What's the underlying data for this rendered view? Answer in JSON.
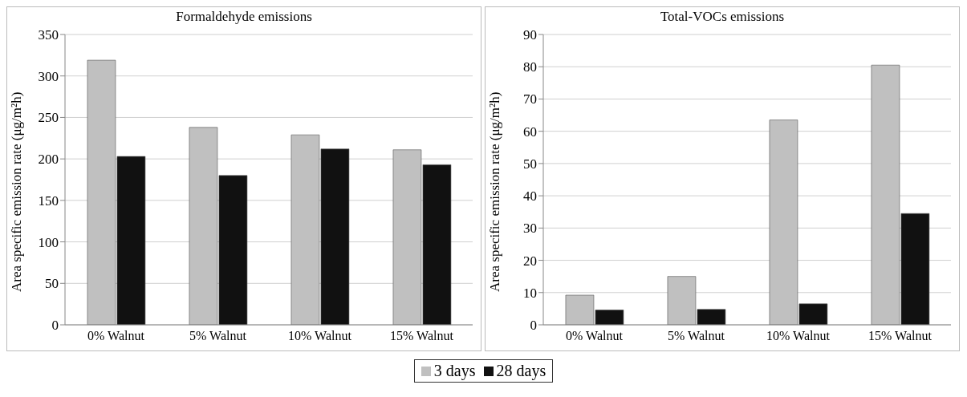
{
  "chart_data": [
    {
      "type": "bar",
      "title": "Formaldehyde emissions",
      "ylabel": "Area specific emission rate (μg/m²h)",
      "categories": [
        "0% Walnut",
        "5% Walnut",
        "10% Walnut",
        "15% Walnut"
      ],
      "series": [
        {
          "name": "3 days",
          "color": "#c0c0c0",
          "values": [
            319,
            238,
            229,
            211
          ]
        },
        {
          "name": "28 days",
          "color": "#111111",
          "values": [
            203,
            180,
            212,
            193
          ]
        }
      ],
      "ylim": [
        0,
        350
      ],
      "yticks": [
        0,
        50,
        100,
        150,
        200,
        250,
        300,
        350
      ],
      "grid": "y",
      "legend": "bottom"
    },
    {
      "type": "bar",
      "title": "Total-VOCs emissions",
      "ylabel": "Area specific emission rate (μg/m²h)",
      "categories": [
        "0% Walnut",
        "5% Walnut",
        "10% Walnut",
        "15% Walnut"
      ],
      "series": [
        {
          "color": "#c0c0c0",
          "values": [
            9.2,
            15,
            63.5,
            80.5
          ]
        },
        {
          "color": "#111111",
          "values": [
            4.6,
            4.8,
            6.5,
            34.5
          ]
        }
      ],
      "ylim": [
        0,
        90
      ],
      "yticks": [
        0,
        10,
        20,
        30,
        40,
        50,
        60,
        70,
        80,
        90
      ],
      "grid": "y"
    }
  ]
}
